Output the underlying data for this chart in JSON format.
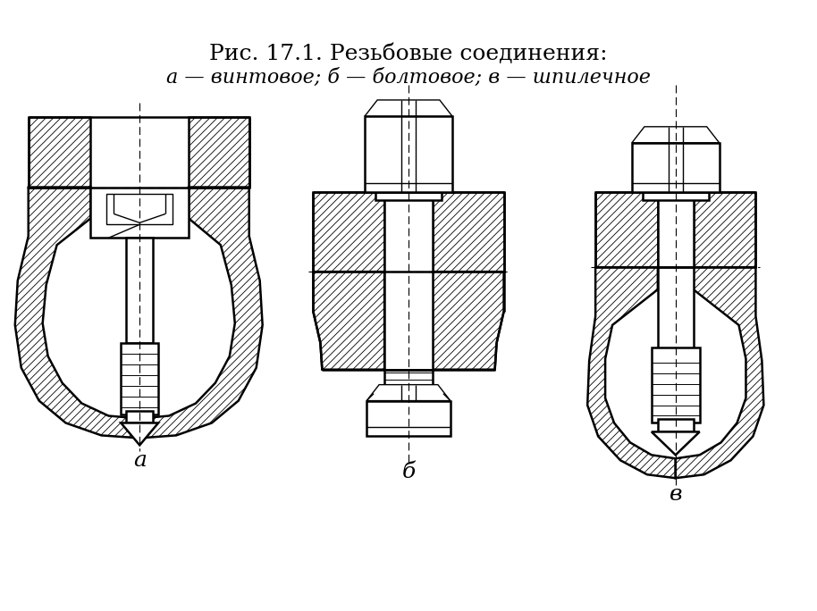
{
  "title_line1": "Рис. 17.1. Резьбовые соединения:",
  "title_line2": "а — винтовое; б — болтовое; в — шпилечное",
  "label_a": "а",
  "label_b": "б",
  "label_v": "в",
  "bg_color": "#ffffff",
  "lw": 1.8,
  "lwt": 1.0,
  "lwc": 0.8,
  "title_fontsize": 18,
  "subtitle_fontsize": 16,
  "label_fontsize": 18
}
